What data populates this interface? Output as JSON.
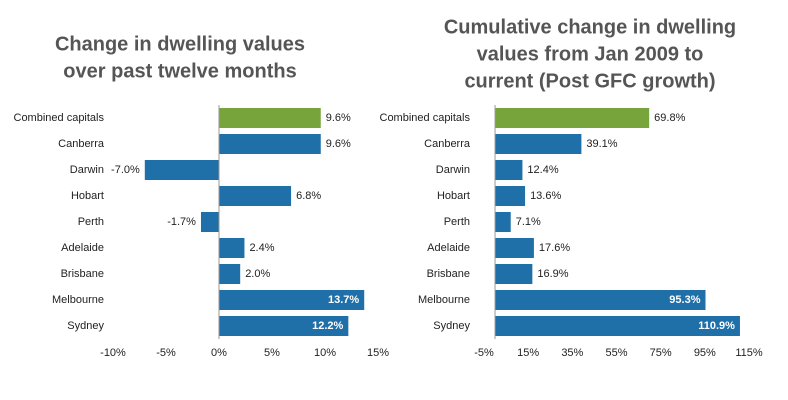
{
  "chart_data": [
    {
      "type": "bar",
      "orientation": "horizontal",
      "title": [
        "Change in dwelling values",
        "over past twelve months"
      ],
      "categories": [
        "Combined capitals",
        "Canberra",
        "Darwin",
        "Hobart",
        "Perth",
        "Adelaide",
        "Brisbane",
        "Melbourne",
        "Sydney"
      ],
      "values": [
        9.6,
        9.6,
        -7.0,
        6.8,
        -1.7,
        2.4,
        2.0,
        13.7,
        12.2
      ],
      "value_labels": [
        "9.6%",
        "9.6%",
        "-7.0%",
        "6.8%",
        "-1.7%",
        "2.4%",
        "2.0%",
        "13.7%",
        "12.2%"
      ],
      "colors": [
        "#77a53c",
        "#1f6fa8",
        "#1f6fa8",
        "#1f6fa8",
        "#1f6fa8",
        "#1f6fa8",
        "#1f6fa8",
        "#1f6fa8",
        "#1f6fa8"
      ],
      "xlim": [
        -10,
        15
      ],
      "xticks": [
        {
          "value": -10,
          "label": "-10%"
        },
        {
          "value": -5,
          "label": "-5%"
        },
        {
          "value": 0,
          "label": "0%"
        },
        {
          "value": 5,
          "label": "5%"
        },
        {
          "value": 10,
          "label": "10%"
        },
        {
          "value": 15,
          "label": "15%"
        }
      ],
      "grid": false
    },
    {
      "type": "bar",
      "orientation": "horizontal",
      "title": [
        "Cumulative change in dwelling",
        "values from Jan 2009 to",
        "current (Post GFC growth)"
      ],
      "categories": [
        "Combined capitals",
        "Canberra",
        "Darwin",
        "Hobart",
        "Perth",
        "Adelaide",
        "Brisbane",
        "Melbourne",
        "Sydney"
      ],
      "values": [
        69.8,
        39.1,
        12.4,
        13.6,
        7.1,
        17.6,
        16.9,
        95.3,
        110.9
      ],
      "value_labels": [
        "69.8%",
        "39.1%",
        "12.4%",
        "13.6%",
        "7.1%",
        "17.6%",
        "16.9%",
        "95.3%",
        "110.9%"
      ],
      "colors": [
        "#77a53c",
        "#1f6fa8",
        "#1f6fa8",
        "#1f6fa8",
        "#1f6fa8",
        "#1f6fa8",
        "#1f6fa8",
        "#1f6fa8",
        "#1f6fa8"
      ],
      "xlim": [
        -5,
        115
      ],
      "xticks": [
        {
          "value": -5,
          "label": "-5%"
        },
        {
          "value": 15,
          "label": "15%"
        },
        {
          "value": 35,
          "label": "35%"
        },
        {
          "value": 55,
          "label": "55%"
        },
        {
          "value": 75,
          "label": "75%"
        },
        {
          "value": 95,
          "label": "95%"
        },
        {
          "value": 115,
          "label": "115%"
        }
      ],
      "grid": false
    }
  ]
}
